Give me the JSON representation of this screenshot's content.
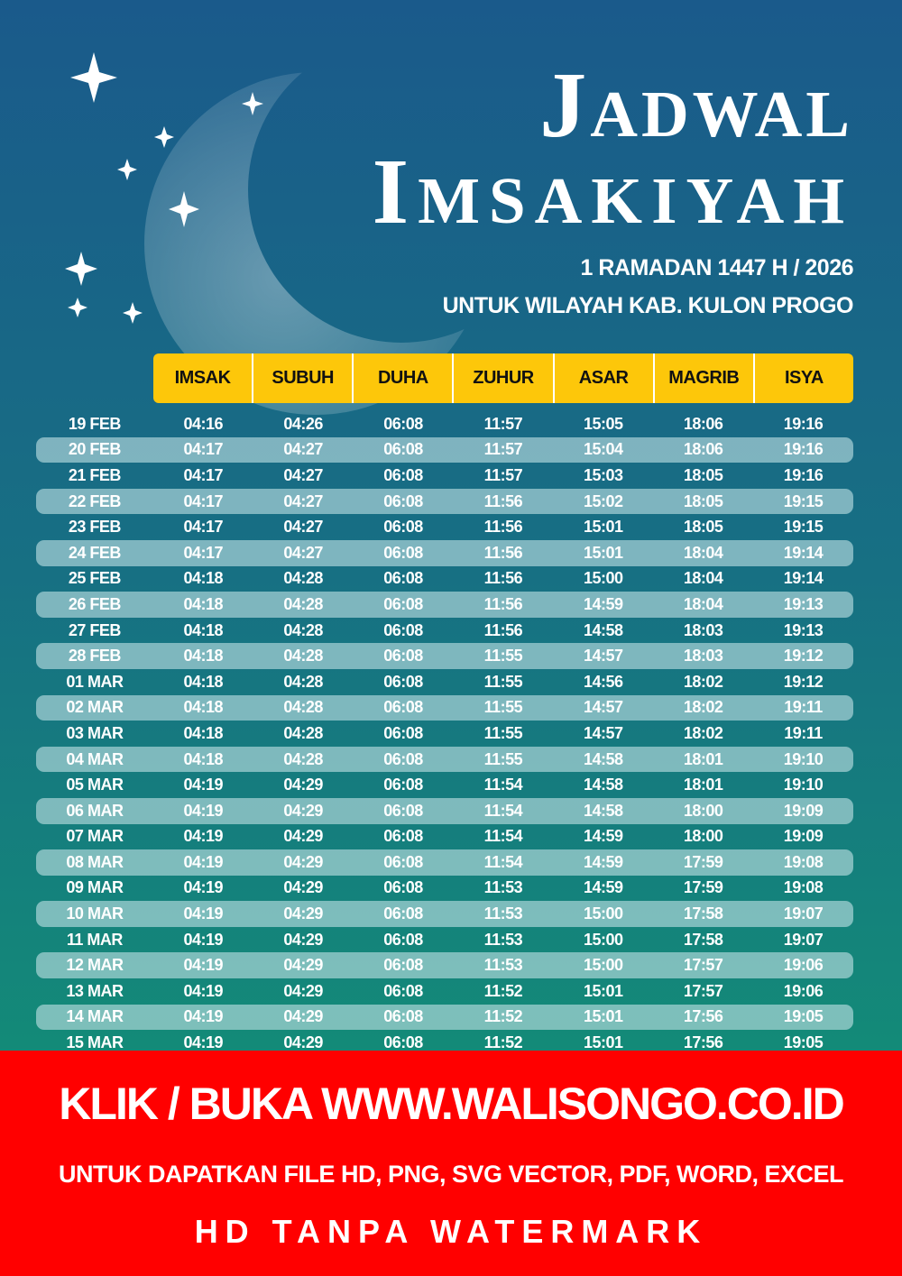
{
  "title": {
    "line1": "Jadwal",
    "line2": "Imsakiyah"
  },
  "subtitle": {
    "line1": "1 RAMADAN 1447 H / 2026",
    "line2": "UNTUK WILAYAH KAB. KULON PROGO"
  },
  "colors": {
    "header_bg": "#fdc70a",
    "banner_bg": "#ff0000",
    "bg_top": "#1a5a8b",
    "bg_bottom": "#138a78"
  },
  "table": {
    "headers": [
      "IMSAK",
      "SUBUH",
      "DUHA",
      "ZUHUR",
      "ASAR",
      "MAGRIB",
      "ISYA"
    ],
    "rows": [
      [
        "19 FEB",
        "04:16",
        "04:26",
        "06:08",
        "11:57",
        "15:05",
        "18:06",
        "19:16"
      ],
      [
        "20 FEB",
        "04:17",
        "04:27",
        "06:08",
        "11:57",
        "15:04",
        "18:06",
        "19:16"
      ],
      [
        "21 FEB",
        "04:17",
        "04:27",
        "06:08",
        "11:57",
        "15:03",
        "18:05",
        "19:16"
      ],
      [
        "22 FEB",
        "04:17",
        "04:27",
        "06:08",
        "11:56",
        "15:02",
        "18:05",
        "19:15"
      ],
      [
        "23 FEB",
        "04:17",
        "04:27",
        "06:08",
        "11:56",
        "15:01",
        "18:05",
        "19:15"
      ],
      [
        "24 FEB",
        "04:17",
        "04:27",
        "06:08",
        "11:56",
        "15:01",
        "18:04",
        "19:14"
      ],
      [
        "25 FEB",
        "04:18",
        "04:28",
        "06:08",
        "11:56",
        "15:00",
        "18:04",
        "19:14"
      ],
      [
        "26 FEB",
        "04:18",
        "04:28",
        "06:08",
        "11:56",
        "14:59",
        "18:04",
        "19:13"
      ],
      [
        "27 FEB",
        "04:18",
        "04:28",
        "06:08",
        "11:56",
        "14:58",
        "18:03",
        "19:13"
      ],
      [
        "28 FEB",
        "04:18",
        "04:28",
        "06:08",
        "11:55",
        "14:57",
        "18:03",
        "19:12"
      ],
      [
        "01 MAR",
        "04:18",
        "04:28",
        "06:08",
        "11:55",
        "14:56",
        "18:02",
        "19:12"
      ],
      [
        "02 MAR",
        "04:18",
        "04:28",
        "06:08",
        "11:55",
        "14:57",
        "18:02",
        "19:11"
      ],
      [
        "03 MAR",
        "04:18",
        "04:28",
        "06:08",
        "11:55",
        "14:57",
        "18:02",
        "19:11"
      ],
      [
        "04 MAR",
        "04:18",
        "04:28",
        "06:08",
        "11:55",
        "14:58",
        "18:01",
        "19:10"
      ],
      [
        "05 MAR",
        "04:19",
        "04:29",
        "06:08",
        "11:54",
        "14:58",
        "18:01",
        "19:10"
      ],
      [
        "06 MAR",
        "04:19",
        "04:29",
        "06:08",
        "11:54",
        "14:58",
        "18:00",
        "19:09"
      ],
      [
        "07 MAR",
        "04:19",
        "04:29",
        "06:08",
        "11:54",
        "14:59",
        "18:00",
        "19:09"
      ],
      [
        "08 MAR",
        "04:19",
        "04:29",
        "06:08",
        "11:54",
        "14:59",
        "17:59",
        "19:08"
      ],
      [
        "09 MAR",
        "04:19",
        "04:29",
        "06:08",
        "11:53",
        "14:59",
        "17:59",
        "19:08"
      ],
      [
        "10 MAR",
        "04:19",
        "04:29",
        "06:08",
        "11:53",
        "15:00",
        "17:58",
        "19:07"
      ],
      [
        "11 MAR",
        "04:19",
        "04:29",
        "06:08",
        "11:53",
        "15:00",
        "17:58",
        "19:07"
      ],
      [
        "12 MAR",
        "04:19",
        "04:29",
        "06:08",
        "11:53",
        "15:00",
        "17:57",
        "19:06"
      ],
      [
        "13 MAR",
        "04:19",
        "04:29",
        "06:08",
        "11:52",
        "15:01",
        "17:57",
        "19:06"
      ],
      [
        "14 MAR",
        "04:19",
        "04:29",
        "06:08",
        "11:52",
        "15:01",
        "17:56",
        "19:05"
      ],
      [
        "15 MAR",
        "04:19",
        "04:29",
        "06:08",
        "11:52",
        "15:01",
        "17:56",
        "19:05"
      ]
    ]
  },
  "banner": {
    "line1": "KLIK / BUKA WWW.WALISONGO.CO.ID",
    "line2": "UNTUK DAPATKAN FILE HD, PNG, SVG VECTOR, PDF, WORD, EXCEL",
    "line3": "HD TANPA WATERMARK"
  }
}
